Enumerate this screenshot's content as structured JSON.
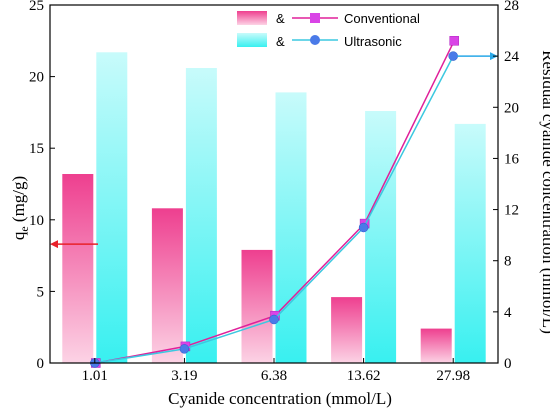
{
  "chart_data": {
    "type": "bar",
    "categories": [
      "1.01",
      "3.19",
      "6.38",
      "13.62",
      "27.98"
    ],
    "xlabel": "Cyanide concentration (mmol/L)",
    "ylabel_left_main": "q",
    "ylabel_left_sub": "e",
    "ylabel_left_unit": " (mg/g)",
    "ylabel_right": "Residual cyanide concentration (mmol/L)",
    "ylim_left": [
      0,
      25
    ],
    "ylim_right": [
      0,
      28
    ],
    "yticks_left": [
      "0",
      "5",
      "10",
      "15",
      "20",
      "25"
    ],
    "yticks_right": [
      "0",
      "4",
      "8",
      "12",
      "16",
      "20",
      "24",
      "28"
    ],
    "bars": [
      {
        "axis": "left",
        "values": [
          13.2,
          10.8,
          7.9,
          4.6,
          2.4
        ],
        "color": "#ee3f8f",
        "color_light": "#fcd3e5"
      },
      {
        "axis": "left",
        "values": [
          21.7,
          20.6,
          18.9,
          17.6,
          16.7
        ],
        "color": "#38f0f0",
        "color_light": "#c8fbfb"
      }
    ],
    "lines": [
      {
        "name": "Conventional",
        "axis": "right",
        "values": [
          0.0,
          1.3,
          3.7,
          10.9,
          25.2
        ],
        "color": "#e0209a",
        "marker": "square"
      },
      {
        "name": "Ultrasonic",
        "axis": "right",
        "values": [
          0.0,
          1.1,
          3.4,
          10.6,
          24.0
        ],
        "color": "#3a8ee8",
        "line_color": "#3cc8e0",
        "marker": "circle"
      }
    ],
    "legend": {
      "position": "top-center",
      "joiner": "&",
      "entries": [
        "Conventional",
        "Ultrasonic"
      ]
    },
    "axis_arrows": {
      "left_color": "#e8202a",
      "right_color": "#28a8e8"
    },
    "grid": false
  }
}
